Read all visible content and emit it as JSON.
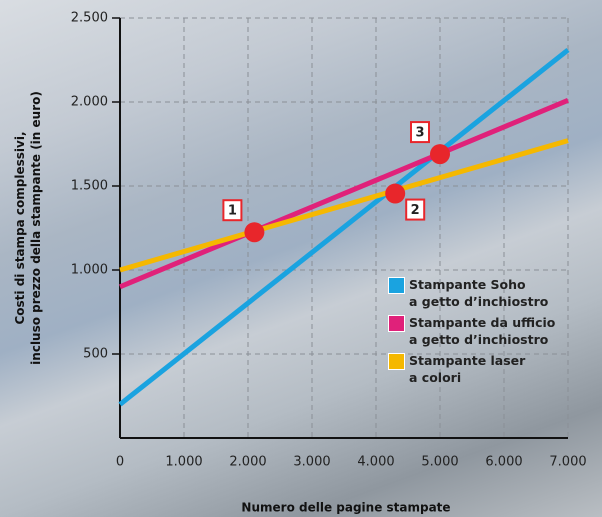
{
  "chart_data": {
    "type": "line",
    "y_label": "Costi di stampa complessivi,\nincluso prezzo della stampante (in euro)",
    "x_label": "Numero delle pagine stampate",
    "x": [
      0,
      7000
    ],
    "series": [
      {
        "name": "Stampante Soho\na getto d’inchiostro",
        "color": "#1aa3e0",
        "values": [
          200,
          2310
        ]
      },
      {
        "name": "Stampante da ufficio\na getto d’inchiostro",
        "color": "#e0217a",
        "values": [
          900,
          2010
        ]
      },
      {
        "name": "Stampante laser\na colori",
        "color": "#f5b800",
        "values": [
          1000,
          1770
        ]
      }
    ],
    "annotations": [
      {
        "label": "1",
        "x": 2100,
        "y": 1225
      },
      {
        "label": "2",
        "x": 4300,
        "y": 1455
      },
      {
        "label": "3",
        "x": 5000,
        "y": 1690
      }
    ],
    "xlim": [
      0,
      7000
    ],
    "xticks": [
      0,
      {
        "value": 1000,
        "label": "1.000"
      },
      {
        "value": 2000,
        "label": "2.000"
      },
      {
        "value": 3000,
        "label": "3.000"
      },
      {
        "value": 4000,
        "label": "4.000"
      },
      {
        "value": 5000,
        "label": "5.000"
      },
      {
        "value": 6000,
        "label": "6.000"
      },
      {
        "value": 7000,
        "label": "7.000"
      }
    ],
    "ylim": [
      0,
      2500
    ],
    "yticks": [
      500,
      {
        "value": 1000,
        "label": "1.000"
      },
      {
        "value": 1500,
        "label": "1.500"
      },
      {
        "value": 2000,
        "label": "2.000"
      },
      {
        "value": 2500,
        "label": "2.500"
      }
    ],
    "grid": true
  }
}
